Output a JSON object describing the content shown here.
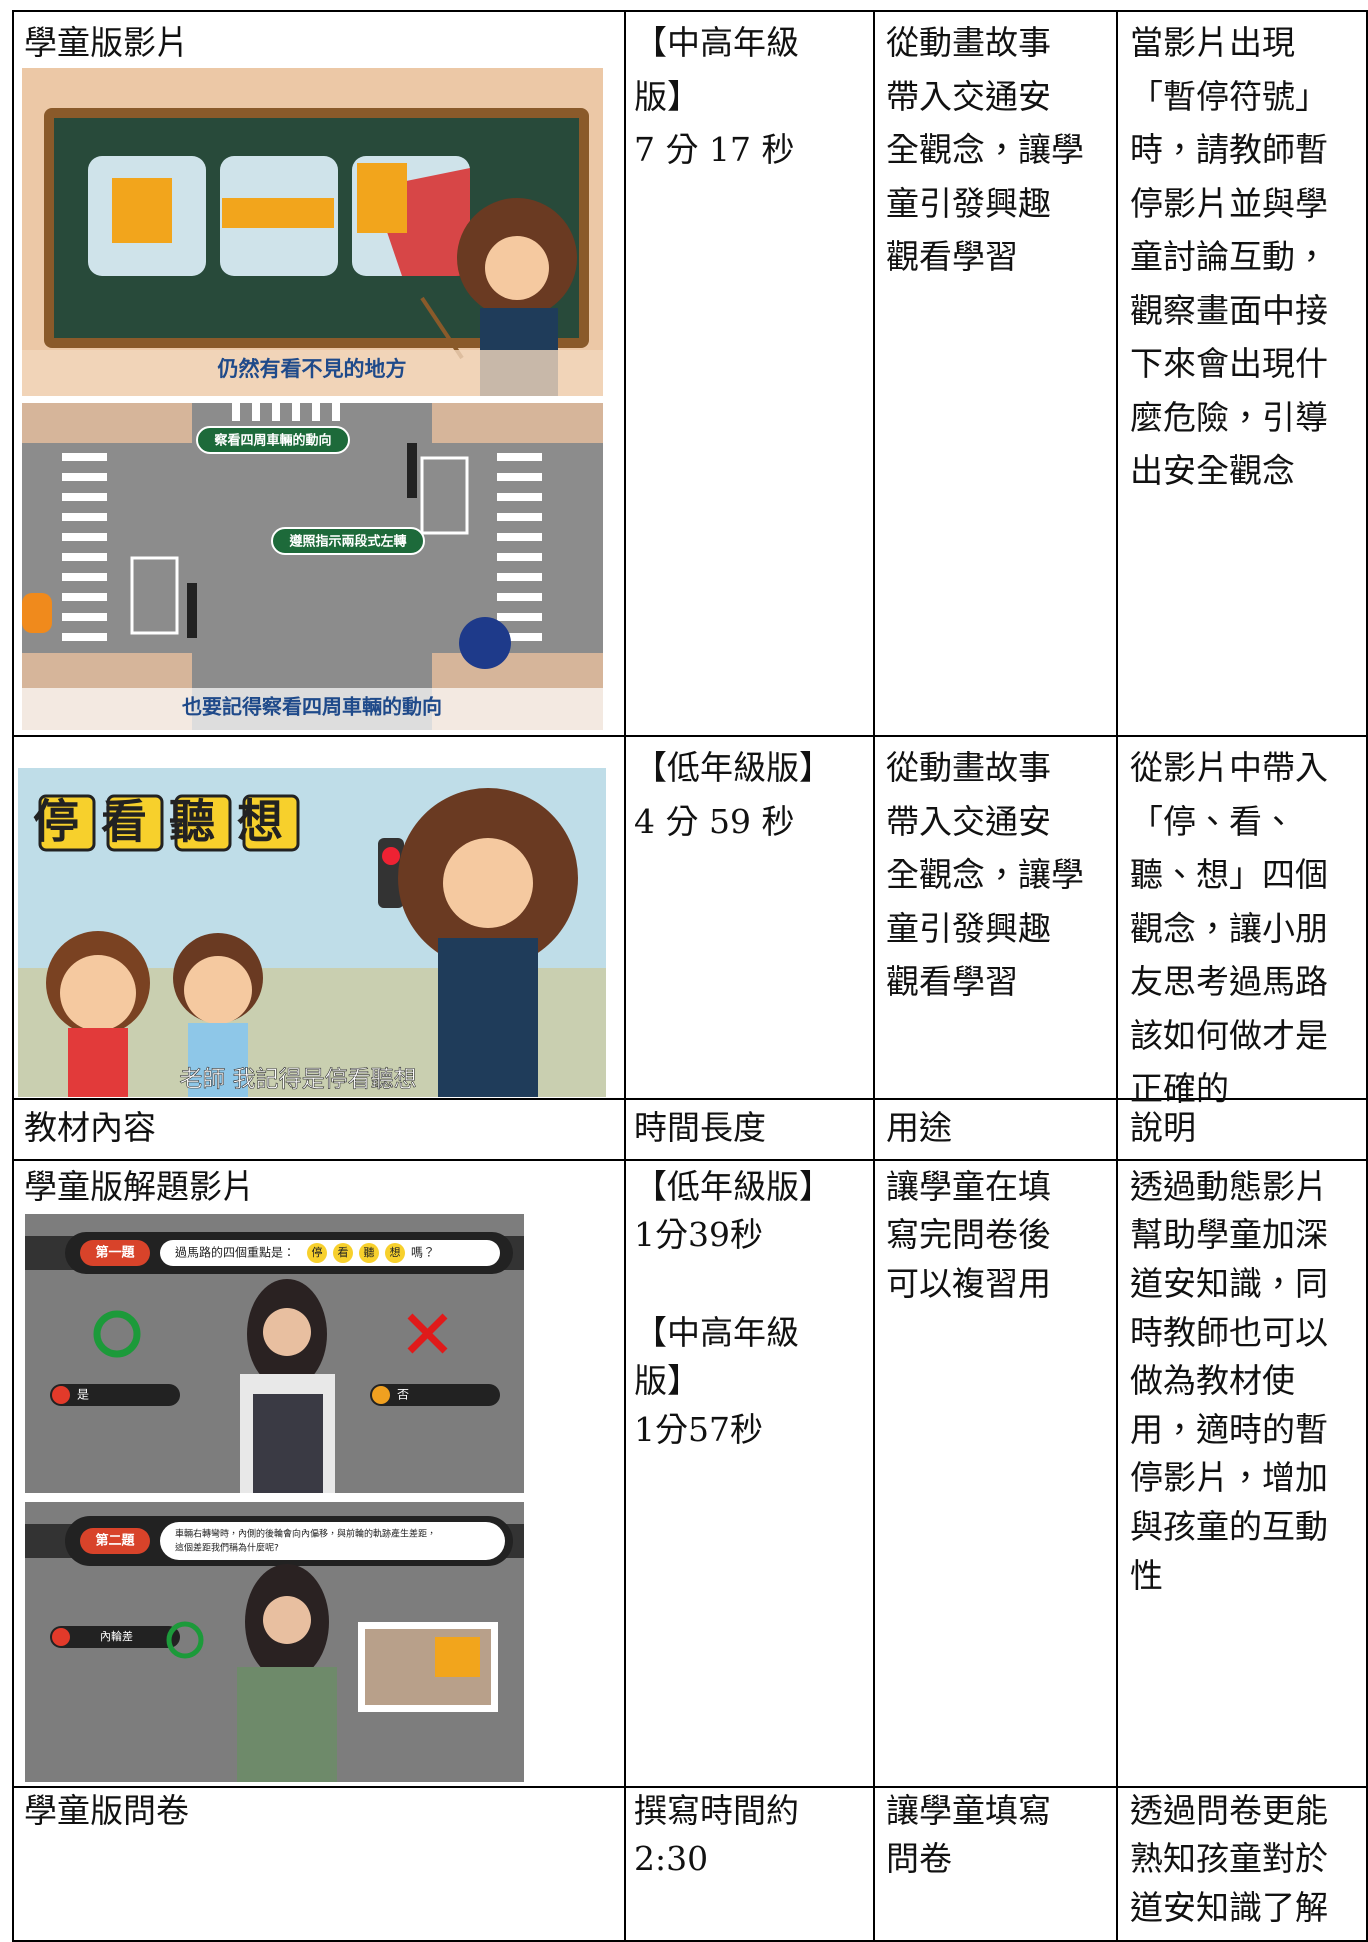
{
  "table": {
    "header": {
      "material": "教材內容",
      "duration": "時間長度",
      "purpose": "用途",
      "description": "說明"
    },
    "rows": [
      {
        "material": {
          "title": "學童版影片",
          "image_1": {
            "caption": "仍然有看不見的地方"
          },
          "image_2": {
            "label_1": "察看四周車輛的動向",
            "label_2": "遵照指示兩段式左轉",
            "caption": "也要記得察看四周車輛的動向"
          }
        },
        "duration": [
          [
            "【中高年級",
            "版】",
            "7 分 17 秒"
          ]
        ],
        "purpose": [
          "從動畫故事",
          "帶入交通安",
          "全觀念，讓學",
          "童引發興趣",
          "觀看學習"
        ],
        "description": [
          "當影片出現",
          "「暫停符號」",
          "時，請教師暫",
          "停影片並與學",
          "童討論互動，",
          "觀察畫面中接",
          "下來會出現什",
          "麼危險，引導",
          "出安全觀念"
        ]
      },
      {
        "material": {
          "image_1": {
            "title": "停看聽想",
            "subtitle": "老師 我記得是停看聽想"
          }
        },
        "duration": [
          [
            "【低年級版】",
            "4 分 59 秒"
          ]
        ],
        "purpose": [
          "從動畫故事",
          "帶入交通安",
          "全觀念，讓學",
          "童引發興趣",
          "觀看學習"
        ],
        "description": [
          "從影片中帶入",
          "「停、看、",
          "聽、想」四個",
          "觀念，讓小朋",
          "友思考過馬路",
          "該如何做才是",
          "正確的"
        ]
      },
      {
        "material": {
          "title": "學童版解題影片",
          "image_1": {
            "badge": "第一題",
            "question": "過馬路的四個重點是：",
            "options": [
              "停",
              "看",
              "聽",
              "想"
            ],
            "question_end": "嗎？",
            "answer_1": "是",
            "answer_2": "否"
          },
          "image_2": {
            "badge": "第二題",
            "question_1": "車輛右轉彎時，內側的後輪會向內偏移，與前輪的軌跡產生差距，",
            "question_2": "這個差距我們稱為什麼呢?",
            "answer_1": "內輪差"
          }
        },
        "duration": [
          [
            "【低年級版】",
            "1分39秒"
          ],
          [
            "【中高年級",
            "版】",
            "1分57秒"
          ]
        ],
        "purpose": [
          "讓學童在填",
          "寫完問卷後",
          "可以複習用"
        ],
        "description": [
          "透過動態影片",
          "幫助學童加深",
          "道安知識，同",
          "時教師也可以",
          "做為教材使",
          "用，適時的暫",
          "停影片，增加",
          "與孩童的互動",
          "性"
        ]
      },
      {
        "material": {
          "title": "學童版問卷"
        },
        "duration": [
          [
            "撰寫時間約",
            "2:30"
          ]
        ],
        "purpose": [
          "讓學童填寫",
          "問卷"
        ],
        "description": [
          "透過問卷更能",
          "熟知孩童對於",
          "道安知識了解"
        ]
      }
    ]
  }
}
